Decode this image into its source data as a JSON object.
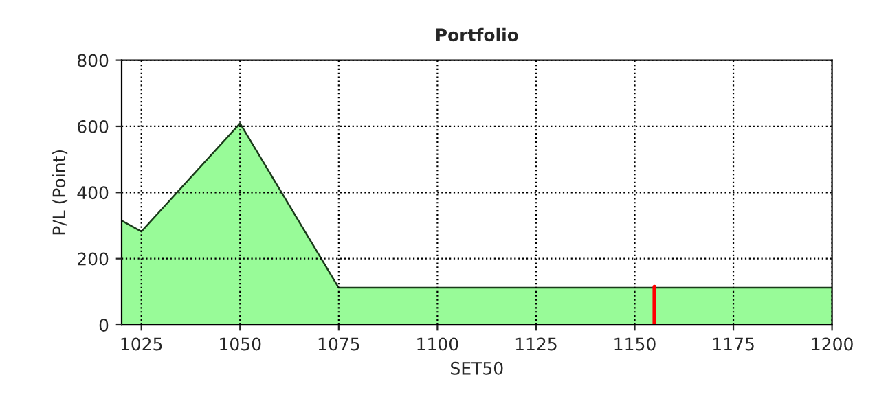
{
  "chart_data": {
    "type": "area",
    "title": "Portfolio",
    "xlabel": "SET50",
    "ylabel": "P/L (Point)",
    "xlim": [
      1020,
      1200
    ],
    "xticks": [
      1025,
      1050,
      1075,
      1100,
      1125,
      1150,
      1175,
      1200
    ],
    "ylim": [
      0,
      800
    ],
    "yticks": [
      0,
      200,
      400,
      600,
      800
    ],
    "grid": true,
    "legend": false,
    "series": [
      {
        "color": "#98fb98",
        "x": [
          1020,
          1025,
          1050,
          1075,
          1200
        ],
        "values": [
          315,
          282,
          609,
          112,
          112
        ]
      },
      {
        "type": "line",
        "color": "#ff0000",
        "x": [
          1155,
          1155
        ],
        "values": [
          0,
          115
        ]
      }
    ]
  }
}
